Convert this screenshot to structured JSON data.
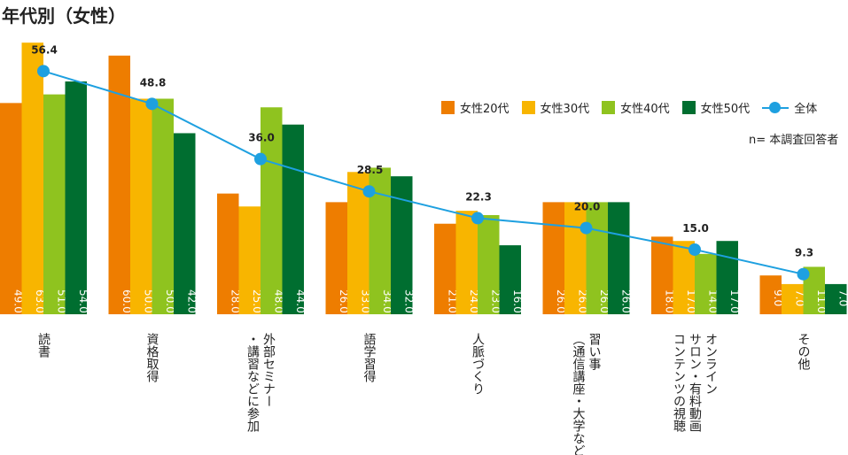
{
  "title": "年代別（女性）",
  "note": "n= 本調査回答者",
  "chart_data": {
    "type": "bar",
    "title": "年代別（女性）",
    "categories": [
      "読書",
      "資格取得",
      "外部セミナー\n・講習などに参加",
      "語学習得",
      "人脈づくり",
      "習い事\n（通信講座・大学など）",
      "オンライン\nサロン・有料動画\nコンテンツの視聴",
      "その他"
    ],
    "series": [
      {
        "name": "女性20代",
        "color": "#ee7d00",
        "values": [
          49.0,
          60.0,
          28.0,
          26.0,
          21.0,
          26.0,
          18.0,
          9.0
        ]
      },
      {
        "name": "女性30代",
        "color": "#f8b500",
        "values": [
          63.0,
          50.0,
          25.0,
          33.0,
          24.0,
          26.0,
          17.0,
          7.0
        ]
      },
      {
        "name": "女性40代",
        "color": "#8fc31f",
        "values": [
          51.0,
          50.0,
          48.0,
          34.0,
          23.0,
          26.0,
          14.0,
          11.0
        ]
      },
      {
        "name": "女性50代",
        "color": "#006e30",
        "values": [
          54.0,
          42.0,
          44.0,
          32.0,
          16.0,
          26.0,
          17.0,
          7.0
        ]
      }
    ],
    "line": {
      "name": "全体",
      "color": "#1ea0e0",
      "values": [
        56.4,
        48.8,
        36.0,
        28.5,
        22.3,
        20.0,
        15.0,
        9.3
      ]
    },
    "ylim": [
      0,
      63
    ],
    "legend": "top-right",
    "grid": false
  }
}
